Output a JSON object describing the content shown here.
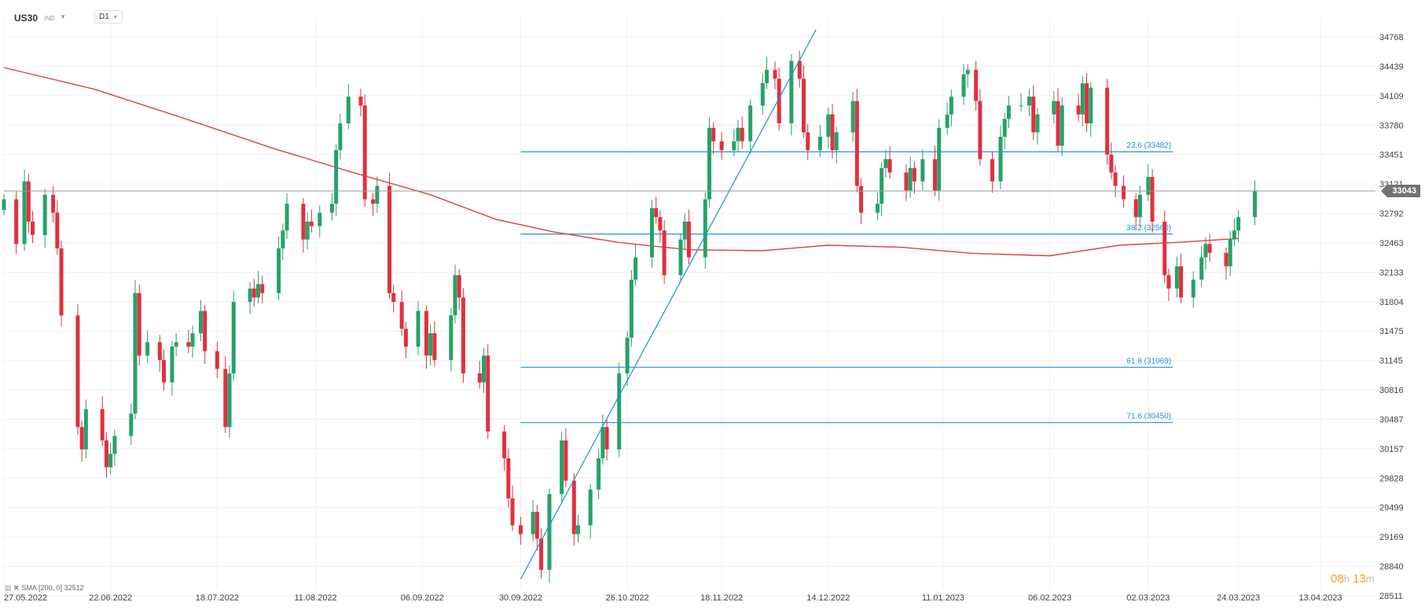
{
  "header": {
    "symbol": "US30",
    "market": "IND",
    "timeframe": "D1"
  },
  "indicator_legend": "SMA [200, 0] 32512",
  "countdown": {
    "hours": "08",
    "hours_unit": "h",
    "minutes": "13",
    "minutes_unit": "m"
  },
  "current_price_label": "33043",
  "colors": {
    "bull": "#26a269",
    "bear": "#e0303e",
    "sma": "#e04040",
    "fib": "#1f8fdc",
    "price_line": "#999999",
    "grid": "#f0f0f0"
  },
  "chart_data": {
    "type": "candlestick",
    "x_axis": {
      "tick_labels": [
        "27.05.2022",
        "22.06.2022",
        "18.07.2022",
        "11.08.2022",
        "06.09.2022",
        "30.09.2022",
        "26.10.2022",
        "18.11.2022",
        "14.12.2022",
        "11.01.2023",
        "06.02.2023",
        "02.03.2023",
        "24.03.2023",
        "13.04.2023"
      ],
      "first_date": "2022-05-27",
      "last_candle_date": "2023-03-28"
    },
    "y_axis": {
      "tick_labels": [
        34768,
        34439,
        34109,
        33780,
        33451,
        33121,
        32792,
        32463,
        32133,
        31804,
        31475,
        31145,
        30816,
        30487,
        30157,
        29828,
        29499,
        29169,
        28840,
        28511
      ],
      "range": [
        28511,
        34768
      ]
    },
    "current_price": 33043,
    "candles_approx_close": [
      32950,
      32450,
      33150,
      32700,
      32550,
      33000,
      32800,
      32400,
      31650,
      30400,
      30150,
      30600,
      30250,
      29950,
      30100,
      30300,
      30550,
      31900,
      31200,
      31350,
      31150,
      30900,
      31300,
      31350,
      31300,
      31450,
      31700,
      31250,
      31050,
      30400,
      31000,
      31800,
      31950,
      31850,
      32000,
      31900,
      32400,
      32600,
      32900,
      32500,
      32700,
      32650,
      32800,
      32900,
      33500,
      33800,
      34100,
      34000,
      32950,
      32900,
      33100,
      31900,
      31800,
      31500,
      31300,
      31700,
      31200,
      31450,
      31150,
      31650,
      32100,
      31850,
      31000,
      30900,
      31200,
      30350,
      30050,
      29600,
      29300,
      29200,
      29450,
      29150,
      28800,
      29650,
      30250,
      29800,
      29200,
      29300,
      29700,
      30050,
      30400,
      30150,
      31000,
      31400,
      32050,
      32300,
      32850,
      32750,
      32600,
      32100,
      32500,
      32700,
      32300,
      32950,
      33750,
      33600,
      33500,
      33600,
      33750,
      33600,
      34000,
      34250,
      34400,
      34300,
      33800,
      34500,
      34300,
      33700,
      33500,
      33650,
      33900,
      33500,
      33700,
      34050,
      33100,
      32800,
      32900,
      33300,
      33400,
      33250,
      33050,
      33300,
      33150,
      33400,
      33050,
      33750,
      33900,
      34100,
      34350,
      34400,
      34050,
      33400,
      33150,
      33650,
      33850,
      34000,
      34000,
      34100,
      33700,
      33900,
      34050,
      33550,
      34000,
      33900,
      34250,
      33800,
      34200,
      33450,
      33250,
      33100,
      32950,
      32750,
      33000,
      33200,
      32700,
      32100,
      31950,
      32200,
      31850,
      32050,
      32300,
      32450,
      32350,
      32200,
      32500,
      32600,
      32750,
      33043
    ],
    "sma": {
      "name": "SMA [200, 0]",
      "value": 32512,
      "points": [
        {
          "d": "2022-05-27",
          "v": 34425
        },
        {
          "d": "2022-06-18",
          "v": 34184
        },
        {
          "d": "2022-07-10",
          "v": 33855
        },
        {
          "d": "2022-08-01",
          "v": 33515
        },
        {
          "d": "2022-08-20",
          "v": 33252
        },
        {
          "d": "2022-09-08",
          "v": 33001
        },
        {
          "d": "2022-09-24",
          "v": 32725
        },
        {
          "d": "2022-10-08",
          "v": 32585
        },
        {
          "d": "2022-10-24",
          "v": 32466
        },
        {
          "d": "2022-11-10",
          "v": 32385
        },
        {
          "d": "2022-11-28",
          "v": 32374
        },
        {
          "d": "2022-12-14",
          "v": 32436
        },
        {
          "d": "2023-01-01",
          "v": 32412
        },
        {
          "d": "2023-01-18",
          "v": 32345
        },
        {
          "d": "2023-02-06",
          "v": 32317
        },
        {
          "d": "2023-02-23",
          "v": 32436
        },
        {
          "d": "2023-03-10",
          "v": 32469
        },
        {
          "d": "2023-03-24",
          "v": 32512
        }
      ]
    },
    "trend_line": {
      "start": {
        "d": "2022-09-30",
        "v": 28700
      },
      "end": {
        "d": "2022-12-11",
        "v": 34850
      }
    },
    "fibonacci": {
      "start_date": "2022-09-30",
      "end_date": "2023-03-08",
      "levels": [
        {
          "label": "23.6 (33482)",
          "value": 33482
        },
        {
          "label": "38.2 (32560)",
          "value": 32560
        },
        {
          "label": "61.8 (31069)",
          "value": 31069
        },
        {
          "label": "71.6 (30450)",
          "value": 30450
        }
      ]
    }
  }
}
